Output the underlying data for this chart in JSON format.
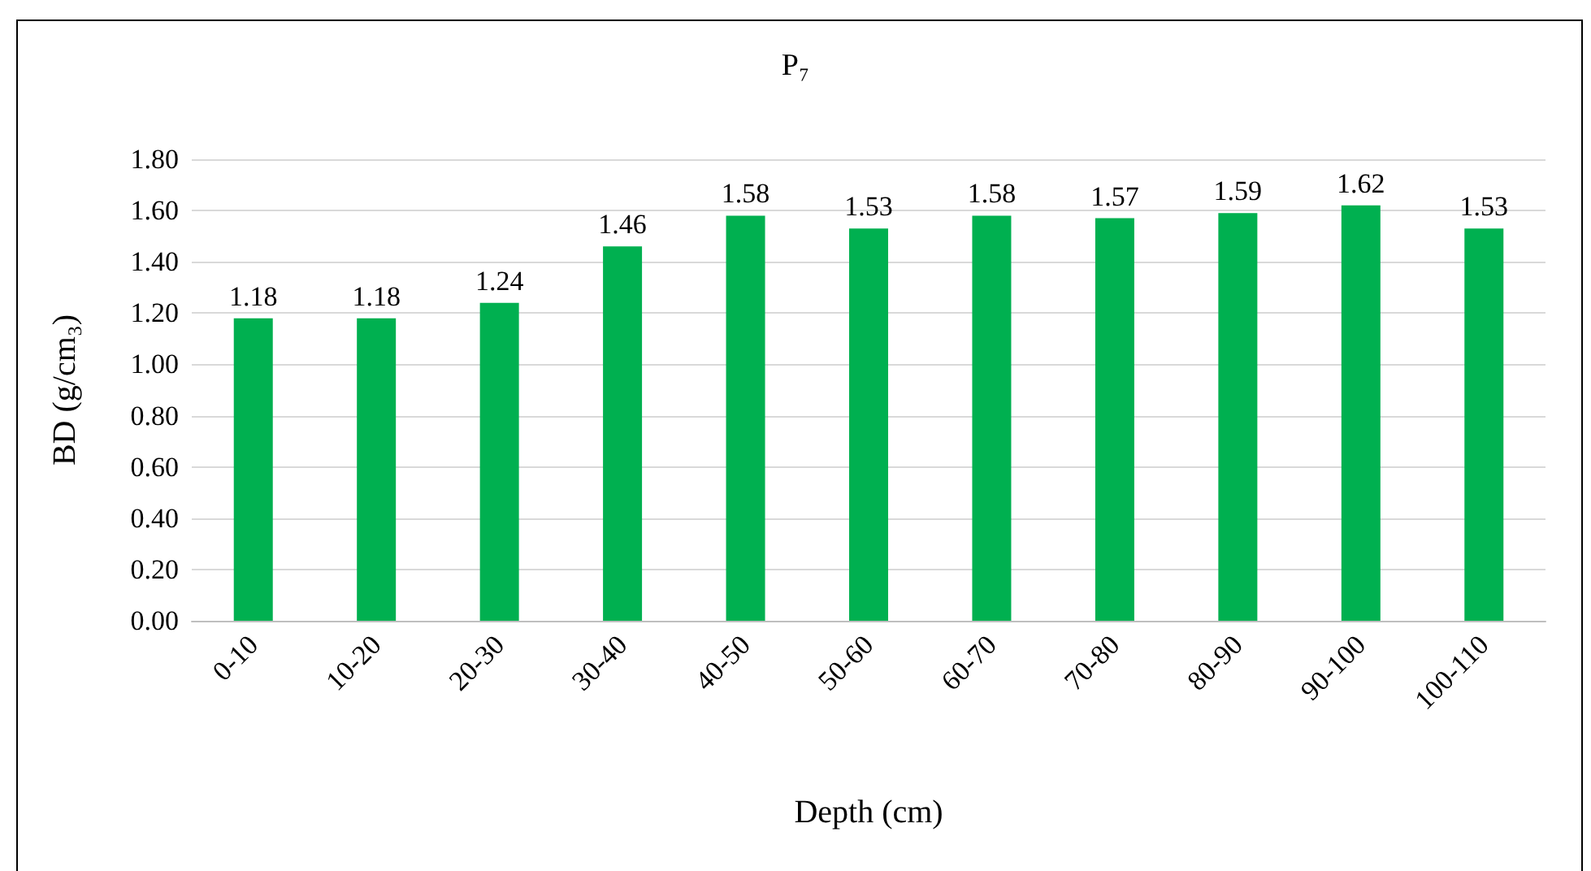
{
  "chart_data": {
    "type": "bar",
    "title": "P₇",
    "xlabel": "Depth (cm)",
    "ylabel": "BD (g/cm₃)",
    "categories": [
      "0-10",
      "10-20",
      "20-30",
      "30-40",
      "40-50",
      "50-60",
      "60-70",
      "70-80",
      "80-90",
      "90-100",
      "100-110"
    ],
    "values": [
      1.18,
      1.18,
      1.24,
      1.46,
      1.58,
      1.53,
      1.58,
      1.57,
      1.59,
      1.62,
      1.53
    ],
    "color": "#00b050",
    "ylim": [
      0,
      1.8
    ],
    "yticks": [
      {
        "value": 0,
        "label": "0.00"
      },
      {
        "value": 0.2,
        "label": "0.20"
      },
      {
        "value": 0.4,
        "label": "0.40"
      },
      {
        "value": 0.6,
        "label": "0.60"
      },
      {
        "value": 0.8,
        "label": "0.80"
      },
      {
        "value": 1.0,
        "label": "1.00"
      },
      {
        "value": 1.2,
        "label": "1.20"
      },
      {
        "value": 1.4,
        "label": "1.40"
      },
      {
        "value": 1.6,
        "label": "1.60"
      },
      {
        "value": 1.8,
        "label": "1.80"
      }
    ],
    "grid": "y",
    "data_labels": true
  }
}
